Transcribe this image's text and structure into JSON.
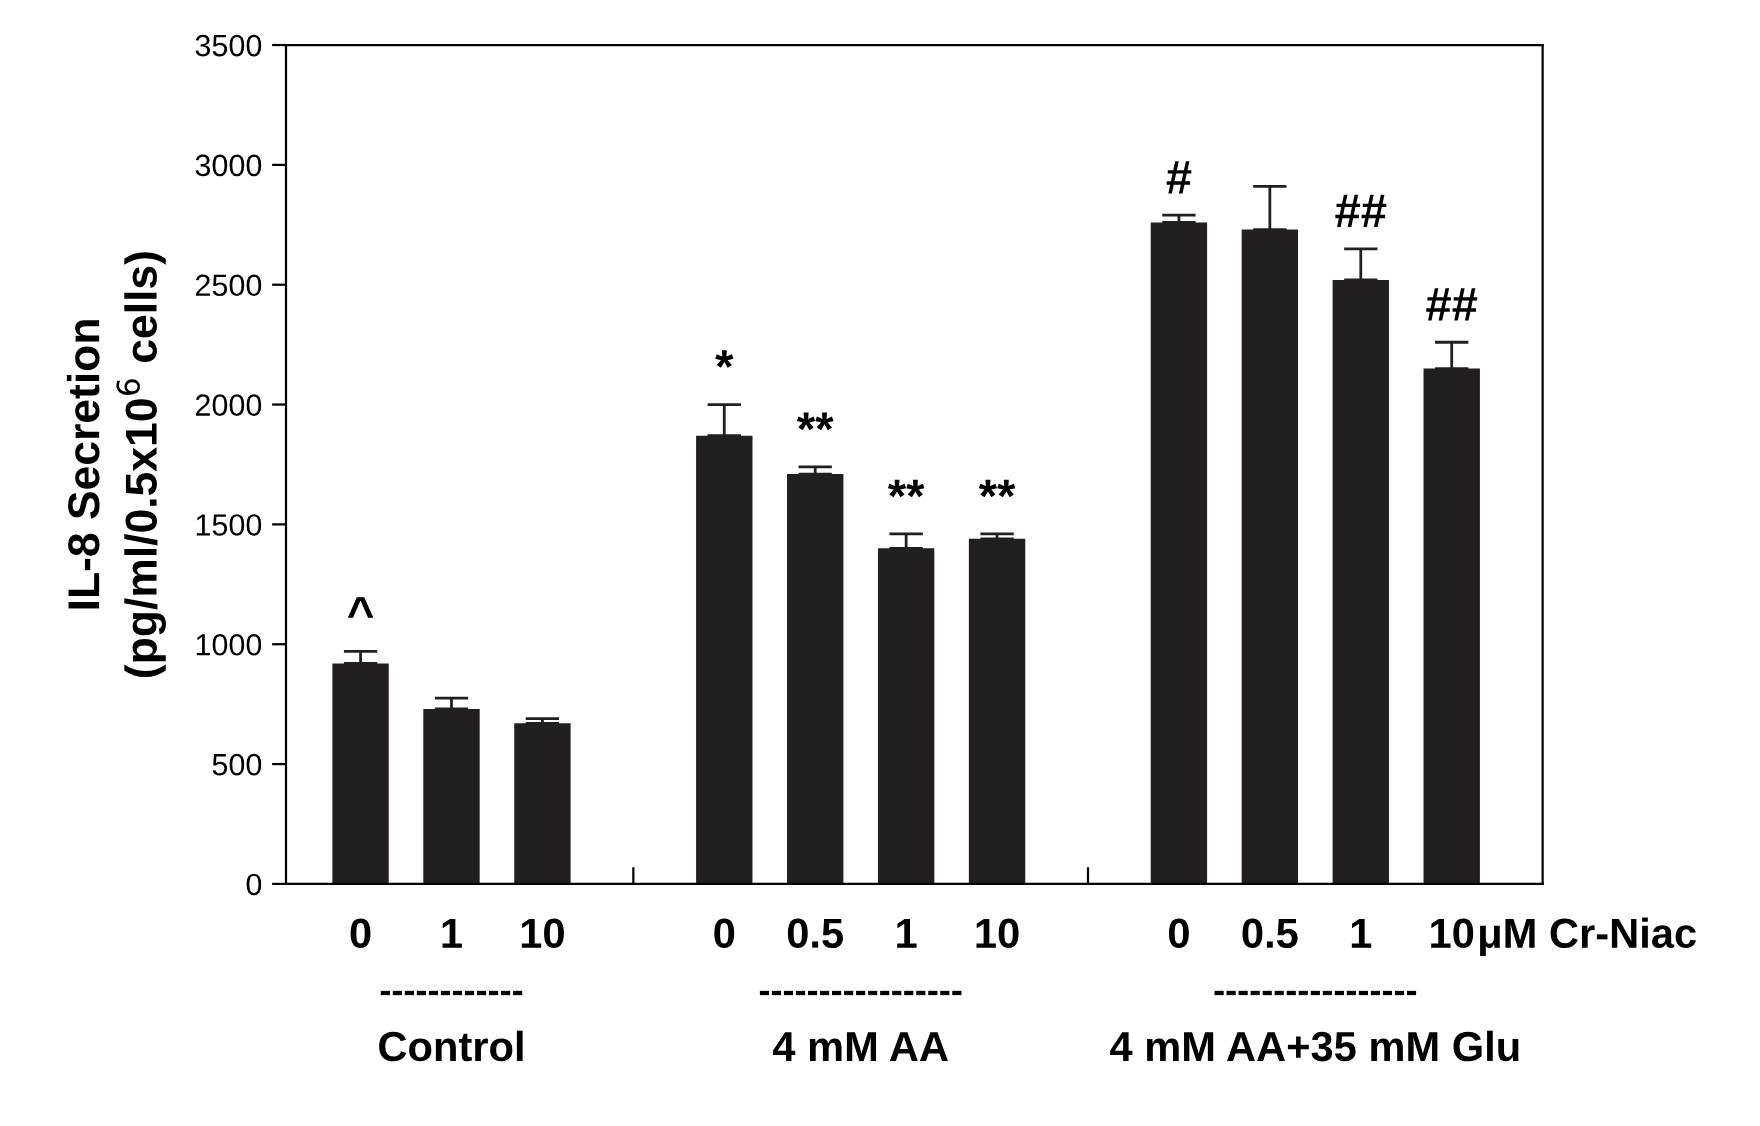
{
  "chart_data": {
    "type": "bar",
    "ylabel": "IL-8 Secretion\n(pg/ml/0.5x10$^{6}$ cells)",
    "categories": [
      "0",
      "1",
      "10",
      null,
      "0",
      "0.5",
      "1",
      "10",
      null,
      "0",
      "0.5",
      "1",
      "10"
    ],
    "values": [
      920,
      730,
      670,
      null,
      1870,
      1710,
      1400,
      1440,
      null,
      2760,
      2730,
      2520,
      2150
    ],
    "errors": [
      [
        920,
        970
      ],
      [
        730,
        775
      ],
      [
        670,
        690
      ],
      null,
      [
        1870,
        2000
      ],
      [
        1710,
        1740
      ],
      [
        1400,
        1460
      ],
      [
        1440,
        1460
      ],
      null,
      [
        2760,
        2790
      ],
      [
        2730,
        2910
      ],
      [
        2520,
        2650
      ],
      [
        2150,
        2260
      ]
    ],
    "value_labels": [
      "^",
      null,
      null,
      null,
      "*",
      "**",
      "**",
      "**",
      null,
      "#",
      null,
      "##",
      "##"
    ],
    "color": "#231f20",
    "ylim": [
      0,
      3500
    ],
    "yticks": [
      0,
      500,
      1000,
      1500,
      2000,
      2500,
      3000,
      3500
    ],
    "grid": false,
    "annotations": [
      "μM Cr-Niac",
      "------------",
      "Control",
      "-----------------",
      "4 mM AA",
      "-----------------",
      "4 mM AA+35 mM Glu"
    ]
  }
}
